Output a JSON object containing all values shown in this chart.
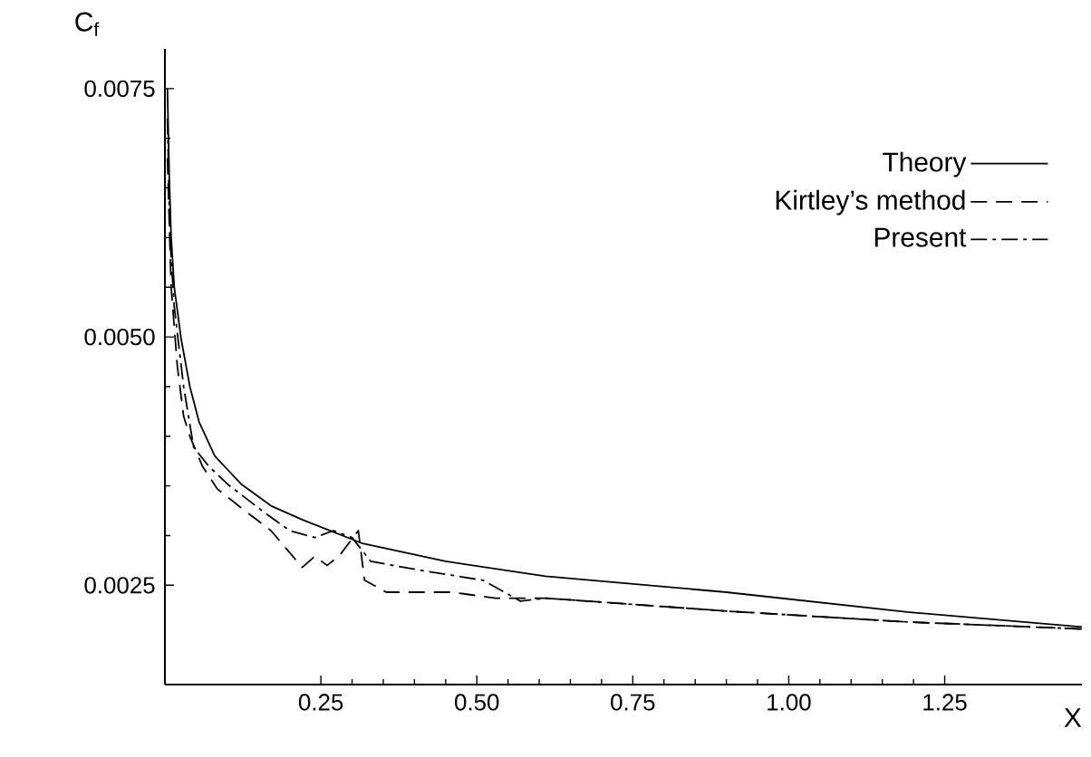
{
  "chart_data": {
    "type": "line",
    "xlabel": "X",
    "ylabel": "C$_{f}$",
    "xlim": [
      0,
      1.47
    ],
    "ylim": [
      0.0015,
      0.0079
    ],
    "xticks": [
      0.25,
      {
        "value": 0.5,
        "label": "0.50"
      },
      0.75,
      {
        "value": 1.0,
        "label": "1.00"
      },
      1.25
    ],
    "yticks": [
      0.0025,
      {
        "value": 0.005,
        "label": "0.0050"
      },
      0.0075
    ],
    "legend": "top right",
    "grid": false,
    "series": [
      {
        "name": "Theory",
        "color": "#000000",
        "line_style": "solid",
        "x": [
          0.004,
          0.007,
          0.01,
          0.015,
          0.026,
          0.04,
          0.055,
          0.08,
          0.122,
          0.17,
          0.22,
          0.317,
          0.45,
          0.61,
          0.9,
          1.19,
          1.47
        ],
        "values": [
          0.0075,
          0.0066,
          0.006,
          0.0055,
          0.00498,
          0.0045,
          0.00414,
          0.0038,
          0.00352,
          0.0033,
          0.00316,
          0.00292,
          0.00274,
          0.00259,
          0.00243,
          0.00223,
          0.00208
        ]
      },
      {
        "name": "Kirtley’s method",
        "color": "#000000",
        "line_style": "dashed",
        "x": [
          0.004,
          0.01,
          0.02,
          0.03,
          0.04,
          0.06,
          0.084,
          0.122,
          0.17,
          0.22,
          0.24,
          0.26,
          0.28,
          0.31,
          0.32,
          0.355,
          0.46,
          0.53,
          0.61,
          0.9,
          1.19,
          1.47
        ],
        "values": [
          0.0068,
          0.0055,
          0.0047,
          0.0042,
          0.004,
          0.0037,
          0.00347,
          0.00328,
          0.00305,
          0.00268,
          0.00279,
          0.0027,
          0.0028,
          0.00305,
          0.00255,
          0.00243,
          0.00243,
          0.00237,
          0.00237,
          0.00224,
          0.00213,
          0.00206
        ]
      },
      {
        "name": "Present",
        "color": "#000000",
        "line_style": "dashdot",
        "x": [
          0.004,
          0.008,
          0.015,
          0.03,
          0.046,
          0.07,
          0.1,
          0.16,
          0.2,
          0.24,
          0.27,
          0.3,
          0.33,
          0.41,
          0.51,
          0.57,
          0.61,
          0.9,
          1.19,
          1.47
        ],
        "values": [
          0.0072,
          0.006,
          0.0053,
          0.0045,
          0.00389,
          0.0037,
          0.00352,
          0.00323,
          0.00305,
          0.00298,
          0.00305,
          0.00298,
          0.00274,
          0.00265,
          0.00255,
          0.00234,
          0.00237,
          0.00224,
          0.00213,
          0.00206
        ]
      }
    ]
  }
}
